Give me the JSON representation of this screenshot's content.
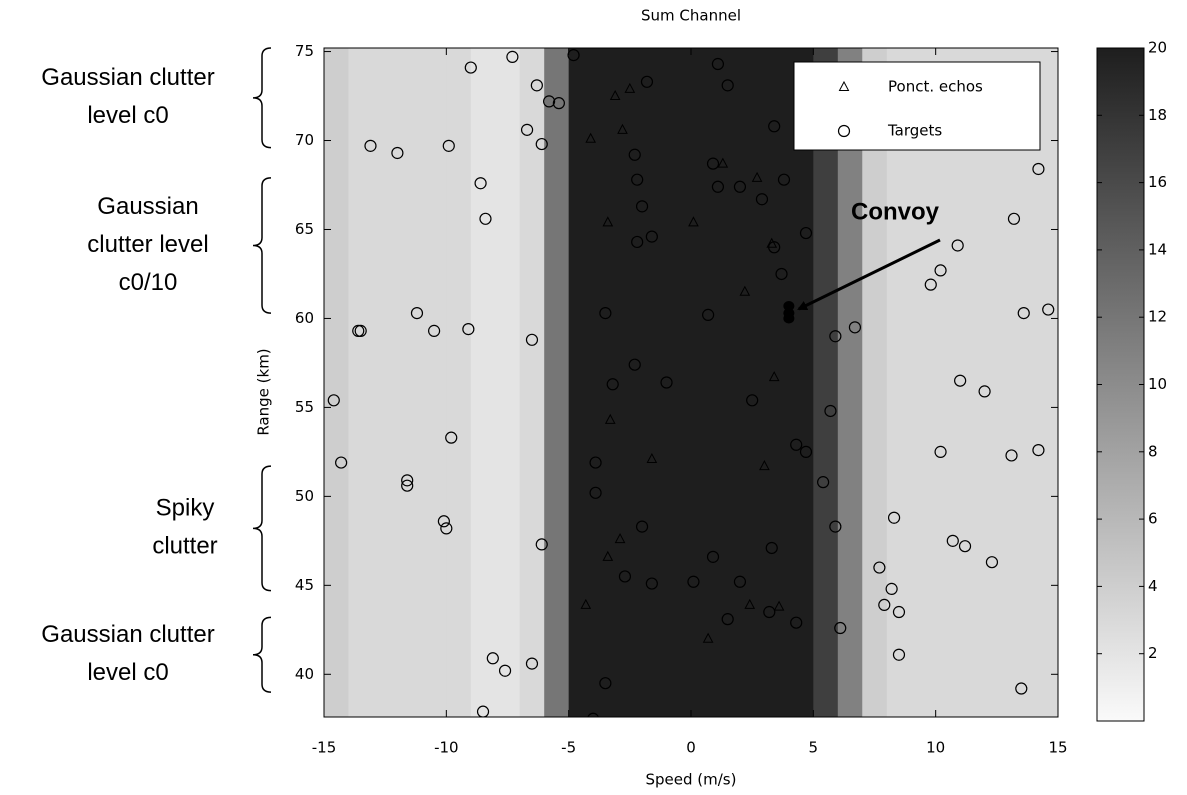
{
  "chart_data": {
    "type": "heatmap-scatter",
    "title": "Sum Channel",
    "xlabel": "Speed (m/s)",
    "ylabel": "Range (km)",
    "xlim": [
      -15,
      15
    ],
    "ylim": [
      37.6,
      75.2
    ],
    "xticks": [
      -15,
      -10,
      -5,
      0,
      5,
      10,
      15
    ],
    "yticks": [
      40,
      45,
      50,
      55,
      60,
      65,
      70,
      75
    ],
    "colormap": "gray-reversed",
    "clim": [
      0,
      20
    ],
    "colorbar_ticks": [
      2,
      4,
      6,
      8,
      10,
      12,
      14,
      16,
      18,
      20
    ],
    "heatmap": {
      "bins": [
        -15,
        -14,
        -13,
        -12,
        -11,
        -10,
        -9,
        -8,
        -7,
        -6,
        -5,
        -4,
        -3,
        -2,
        -1,
        0,
        1,
        2,
        3,
        4,
        5,
        6,
        7,
        8,
        9,
        10,
        11,
        12,
        13,
        14,
        15
      ],
      "values": [
        4,
        3,
        3,
        3,
        3,
        3,
        2,
        2,
        3,
        12,
        20,
        20,
        20,
        20,
        20,
        20,
        20,
        20,
        20,
        20,
        17,
        11,
        4,
        3,
        3,
        3,
        3,
        3,
        3,
        3
      ]
    },
    "series": [
      {
        "name": "Ponct. echos",
        "marker": "triangle",
        "color": "#000000",
        "x": [
          -3.1,
          -2.5,
          -4.1,
          -2.8,
          1.3,
          2.7,
          -3.4,
          0.1,
          3.3,
          2.2,
          3.4,
          -3.3,
          -1.6,
          3.0,
          -2.9,
          -3.4,
          -4.3,
          2.4,
          3.6,
          0.7
        ],
        "y": [
          72.5,
          72.9,
          70.1,
          70.6,
          68.7,
          67.9,
          65.4,
          65.4,
          64.2,
          61.5,
          56.7,
          54.3,
          52.1,
          51.7,
          47.6,
          46.6,
          43.9,
          43.9,
          43.8,
          42.0
        ]
      },
      {
        "name": "Targets",
        "marker": "circle",
        "color": "#000000",
        "x": [
          -9.0,
          -7.3,
          -4.8,
          1.1,
          -6.3,
          -1.8,
          1.5,
          -5.8,
          -5.4,
          -6.7,
          -6.1,
          3.4,
          -13.1,
          -12.0,
          -9.9,
          -2.3,
          0.9,
          -2.2,
          -8.6,
          1.1,
          2.0,
          3.8,
          2.9,
          -2.0,
          14.2,
          -8.4,
          13.2,
          4.7,
          -1.6,
          -2.2,
          3.4,
          10.9,
          10.2,
          9.8,
          3.7,
          -11.2,
          -3.5,
          0.7,
          13.6,
          14.6,
          -13.6,
          -13.5,
          -10.5,
          -9.1,
          -6.5,
          5.9,
          6.7,
          -2.3,
          -3.2,
          -1.0,
          11.0,
          12.0,
          2.5,
          -14.6,
          5.7,
          -9.8,
          4.3,
          4.7,
          10.2,
          13.1,
          14.2,
          -14.3,
          -3.9,
          5.4,
          -11.6,
          -11.6,
          -3.9,
          -10.1,
          -10.0,
          -2.0,
          5.9,
          8.3,
          -6.1,
          3.3,
          10.7,
          11.2,
          12.3,
          0.9,
          -2.7,
          -1.6,
          0.1,
          2.0,
          7.7,
          8.2,
          7.9,
          8.5,
          1.5,
          3.2,
          4.3,
          6.1,
          8.5,
          -6.5,
          -8.1,
          -7.6,
          -3.5,
          13.5,
          -8.5,
          -4.0
        ],
        "y": [
          74.1,
          74.7,
          74.8,
          74.3,
          73.1,
          73.3,
          73.1,
          72.2,
          72.1,
          70.6,
          69.8,
          70.8,
          69.7,
          69.3,
          69.7,
          69.2,
          68.7,
          67.8,
          67.6,
          67.4,
          67.4,
          67.8,
          66.7,
          66.3,
          68.4,
          65.6,
          65.6,
          64.8,
          64.6,
          64.3,
          64.0,
          64.1,
          62.7,
          61.9,
          62.5,
          60.3,
          60.3,
          60.2,
          60.3,
          60.5,
          59.3,
          59.3,
          59.3,
          59.4,
          58.8,
          59.0,
          59.5,
          57.4,
          56.3,
          56.4,
          56.5,
          55.9,
          55.4,
          55.4,
          54.8,
          53.3,
          52.9,
          52.5,
          52.5,
          52.3,
          52.6,
          51.9,
          51.9,
          50.8,
          50.9,
          50.6,
          50.2,
          48.6,
          48.2,
          48.3,
          48.3,
          48.8,
          47.3,
          47.1,
          47.5,
          47.2,
          46.3,
          46.6,
          45.5,
          45.1,
          45.2,
          45.2,
          46.0,
          44.8,
          43.9,
          43.5,
          43.1,
          43.5,
          42.9,
          42.6,
          41.1,
          40.6,
          40.9,
          40.2,
          39.5,
          39.2,
          37.9,
          37.5
        ]
      }
    ],
    "legend": "upper right",
    "annotations": [
      {
        "lines": [
          "Gaussian clutter",
          "level c0"
        ],
        "span": [
          69.6,
          75.2
        ]
      },
      {
        "lines": [
          "Gaussian",
          "clutter level",
          "c0/10"
        ],
        "span": [
          60.3,
          67.9
        ]
      },
      {
        "lines": [
          "Spiky",
          "clutter"
        ],
        "span": [
          44.7,
          51.7
        ]
      },
      {
        "lines": [
          "Gaussian clutter",
          "level c0"
        ],
        "span": [
          39.0,
          43.2
        ]
      }
    ],
    "convoy": {
      "text": "Convoy",
      "x": [
        4.0,
        4.0,
        4.0
      ],
      "y": [
        60.7,
        60.3,
        60.0
      ]
    }
  }
}
